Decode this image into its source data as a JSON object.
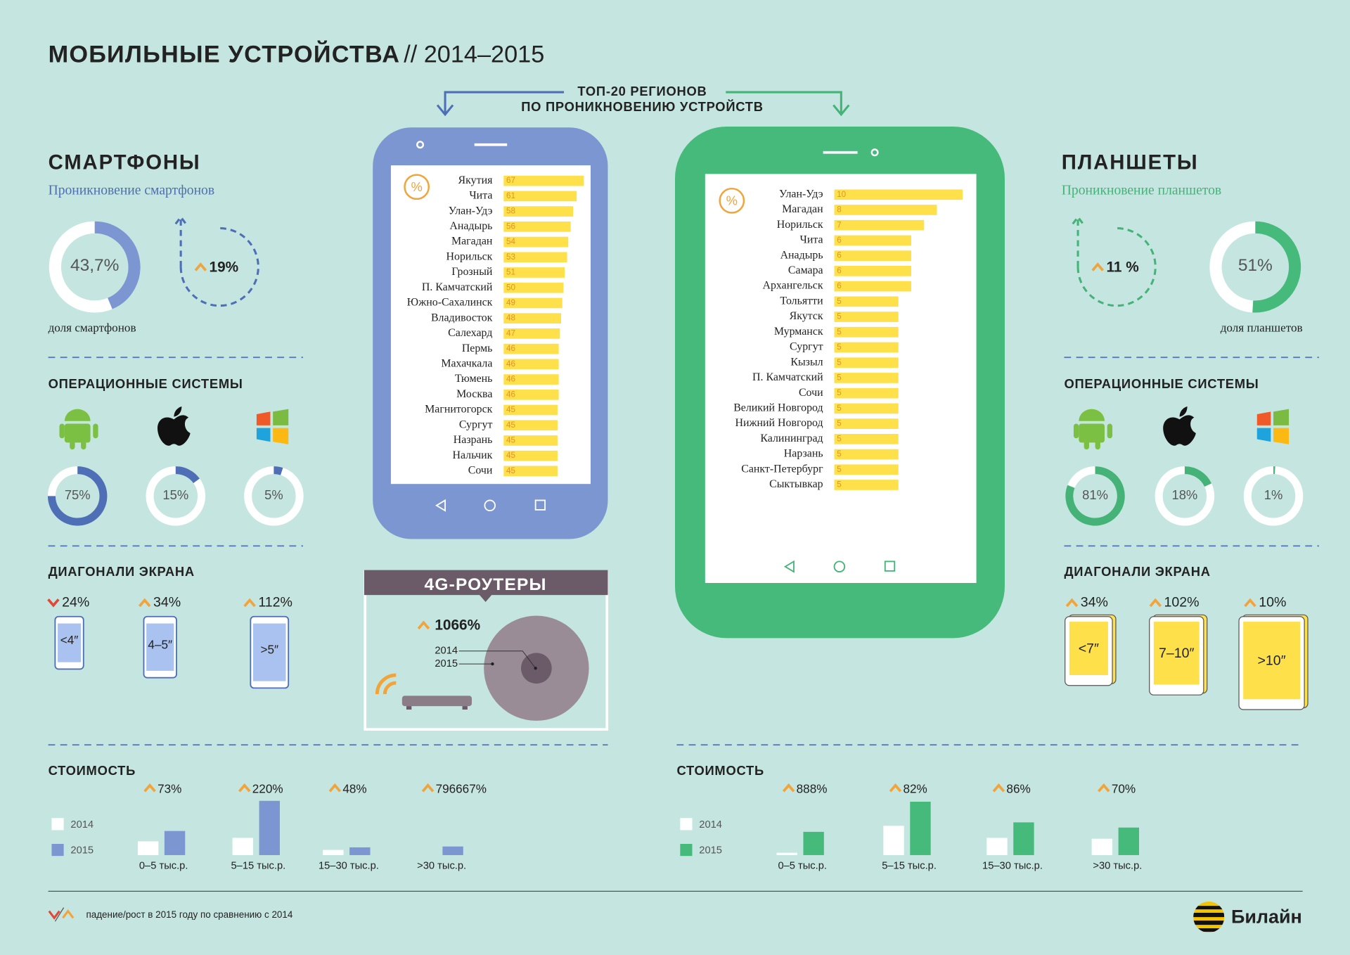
{
  "header": {
    "title": "МОБИЛЬНЫЕ УСТРОЙСТВА",
    "subtitle": "// 2014–2015"
  },
  "top20": {
    "title": [
      "ТОП-20 РЕГИОНОВ",
      "ПО ПРОНИКНОВЕНИЮ УСТРОЙСТВ"
    ]
  },
  "smartphones": {
    "color": "#7b96d0",
    "accent": "#4e6fb5",
    "title": "СМАРТФОНЫ",
    "subtitle": "Проникновение смартфонов",
    "share": {
      "value": 43.7,
      "label": "43,7%"
    },
    "share_caption": "доля смартфонов",
    "growth": {
      "value": 19,
      "label": "19%",
      "direction": "up"
    },
    "os_title": "ОПЕРАЦИОННЫЕ СИСТЕМЫ",
    "os": [
      {
        "value": 75,
        "label": "75%"
      },
      {
        "value": 15,
        "label": "15%"
      },
      {
        "value": 5,
        "label": "5%"
      }
    ],
    "diag_title": "ДИАГОНАЛИ ЭКРАНА",
    "diagonals": [
      {
        "name": "<4″",
        "growth": {
          "value": 24,
          "label": "24%",
          "direction": "down"
        }
      },
      {
        "name": "4–5″",
        "growth": {
          "value": 34,
          "label": "34%",
          "direction": "up"
        }
      },
      {
        "name": ">5″",
        "growth": {
          "value": 112,
          "label": "112%",
          "direction": "up"
        }
      }
    ],
    "regions": {
      "unit": "%",
      "categories": [
        "Якутия",
        "Чита",
        "Улан-Удэ",
        "Анадырь",
        "Магадан",
        "Норильск",
        "Грозный",
        "П. Камчатский",
        "Южно-Сахалинск",
        "Владивосток",
        "Салехард",
        "Пермь",
        "Махачкала",
        "Тюмень",
        "Москва",
        "Магнитогорск",
        "Сургут",
        "Назрань",
        "Нальчик",
        "Сочи"
      ],
      "values": [
        67,
        61,
        58,
        56,
        54,
        53,
        51,
        50,
        49,
        48,
        47,
        46,
        46,
        46,
        46,
        45,
        45,
        45,
        45,
        45
      ]
    },
    "cost": {
      "title": "СТОИМОСТЬ",
      "categories": [
        "0–5 тыс.р.",
        "5–15 тыс.р.",
        "15–30 тыс.р.",
        ">30 тыс.р."
      ],
      "growth": [
        {
          "value": 73,
          "label": "73%",
          "direction": "up"
        },
        {
          "value": 220,
          "label": "220%",
          "direction": "up"
        },
        {
          "value": 48,
          "label": "48%",
          "direction": "up"
        },
        {
          "value": 796667,
          "label": "796667%",
          "direction": "up"
        }
      ],
      "series": [
        {
          "name": "2014",
          "color": "#ffffff",
          "values": [
            16,
            20,
            6,
            0.001
          ]
        },
        {
          "name": "2015",
          "color": "#7b96d0",
          "values": [
            28,
            63,
            9,
            10
          ]
        }
      ]
    }
  },
  "tablets": {
    "color": "#45ba7b",
    "accent": "#45b378",
    "title": "ПЛАНШЕТЫ",
    "subtitle": "Проникновение планшетов",
    "share": {
      "value": 51,
      "label": "51%"
    },
    "share_caption": "доля планшетов",
    "growth": {
      "value": 11,
      "label": "11 %",
      "direction": "up"
    },
    "os_title": "ОПЕРАЦИОННЫЕ СИСТЕМЫ",
    "os": [
      {
        "value": 81,
        "label": "81%"
      },
      {
        "value": 18,
        "label": "18%"
      },
      {
        "value": 1,
        "label": "1%"
      }
    ],
    "diag_title": "ДИАГОНАЛИ ЭКРАНА",
    "diagonals": [
      {
        "name": "<7″",
        "growth": {
          "value": 34,
          "label": "34%",
          "direction": "up"
        }
      },
      {
        "name": "7–10″",
        "growth": {
          "value": 102,
          "label": "102%",
          "direction": "up"
        }
      },
      {
        "name": ">10″",
        "growth": {
          "value": 10,
          "label": "10%",
          "direction": "up"
        }
      }
    ],
    "regions": {
      "unit": "%",
      "categories": [
        "Улан-Удэ",
        "Магадан",
        "Норильск",
        "Чита",
        "Анадырь",
        "Самара",
        "Архангельск",
        "Тольятти",
        "Якутск",
        "Мурманск",
        "Сургут",
        "Кызыл",
        "П. Камчатский",
        "Сочи",
        "Великий Новгород",
        "Нижний Новгород",
        "Калининград",
        "Нарзань",
        "Санкт-Петербург",
        "Сыктывкар"
      ],
      "values": [
        10,
        8,
        7,
        6,
        6,
        6,
        6,
        5,
        5,
        5,
        5,
        5,
        5,
        5,
        5,
        5,
        5,
        5,
        5,
        5
      ]
    },
    "cost": {
      "title": "СТОИМОСТЬ",
      "categories": [
        "0–5 тыс.р.",
        "5–15 тыс.р.",
        "15–30 тыс.р.",
        ">30 тыс.р."
      ],
      "growth": [
        {
          "value": 888,
          "label": "888%",
          "direction": "up"
        },
        {
          "value": 82,
          "label": "82%",
          "direction": "up"
        },
        {
          "value": 86,
          "label": "86%",
          "direction": "up"
        },
        {
          "value": 70,
          "label": "70%",
          "direction": "up"
        }
      ],
      "series": [
        {
          "name": "2014",
          "color": "#ffffff",
          "values": [
            2.7,
            34,
            20,
            19
          ]
        },
        {
          "name": "2015",
          "color": "#45ba7b",
          "values": [
            27,
            62,
            38,
            32
          ]
        }
      ]
    }
  },
  "routers": {
    "title": "4G-РОУТЕРЫ",
    "growth": {
      "value": 1066,
      "label": "1066%",
      "direction": "up"
    },
    "years": [
      "2014",
      "2015"
    ]
  },
  "footer": {
    "legend": "падение/рост в 2015 году по сравнению с 2014",
    "brand": "Билайн"
  }
}
